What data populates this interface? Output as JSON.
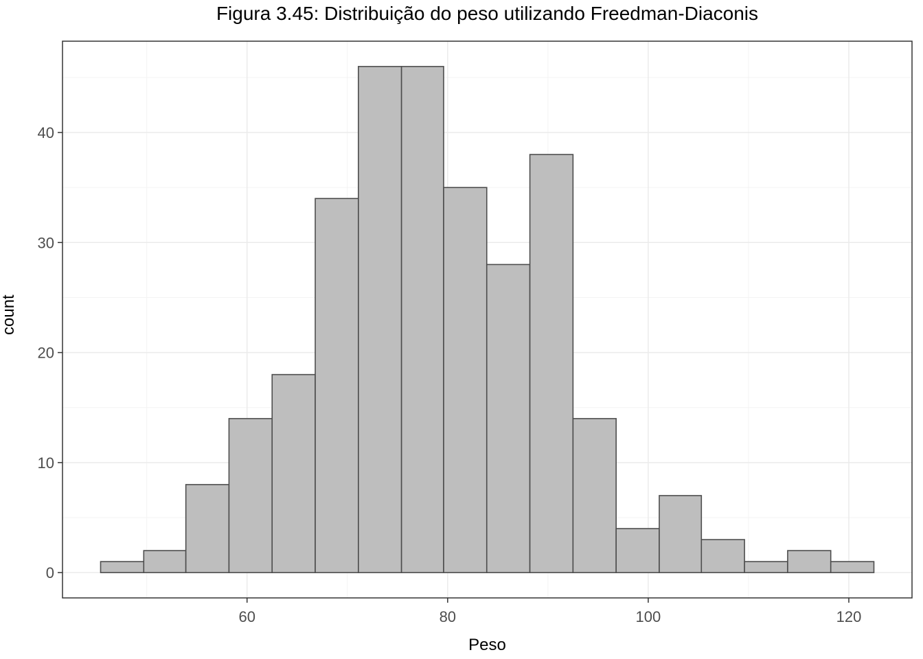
{
  "chart_data": {
    "type": "bar",
    "title": "Figura 3.45: Distribuição do peso utilizando Freedman-Diaconis",
    "xlabel": "Peso",
    "ylabel": "count",
    "bins": [
      {
        "x0": 45.4,
        "x1": 49.7,
        "count": 1
      },
      {
        "x0": 49.7,
        "x1": 53.9,
        "count": 2
      },
      {
        "x0": 53.9,
        "x1": 58.2,
        "count": 8
      },
      {
        "x0": 58.2,
        "x1": 62.5,
        "count": 14
      },
      {
        "x0": 62.5,
        "x1": 66.8,
        "count": 18
      },
      {
        "x0": 66.8,
        "x1": 71.1,
        "count": 34
      },
      {
        "x0": 71.1,
        "x1": 75.4,
        "count": 46
      },
      {
        "x0": 75.4,
        "x1": 79.6,
        "count": 46
      },
      {
        "x0": 79.6,
        "x1": 83.9,
        "count": 35
      },
      {
        "x0": 83.9,
        "x1": 88.2,
        "count": 28
      },
      {
        "x0": 88.2,
        "x1": 92.5,
        "count": 38
      },
      {
        "x0": 92.5,
        "x1": 96.8,
        "count": 14
      },
      {
        "x0": 96.8,
        "x1": 101.1,
        "count": 4
      },
      {
        "x0": 101.1,
        "x1": 105.3,
        "count": 7
      },
      {
        "x0": 105.3,
        "x1": 109.6,
        "count": 3
      },
      {
        "x0": 109.6,
        "x1": 113.9,
        "count": 1
      },
      {
        "x0": 113.9,
        "x1": 118.2,
        "count": 2
      },
      {
        "x0": 118.2,
        "x1": 122.5,
        "count": 1
      }
    ],
    "xlim": [
      41.6,
      126.3
    ],
    "ylim": [
      -2.3,
      48.3
    ],
    "x_ticks": [
      60,
      80,
      100,
      120
    ],
    "x_minor_ticks": [
      50,
      70,
      90,
      110
    ],
    "y_ticks": [
      0,
      10,
      20,
      30,
      40
    ],
    "y_minor_ticks": [
      5,
      15,
      25,
      35,
      45
    ],
    "grid": true,
    "colors": {
      "bar_fill": "#bebebe",
      "bar_stroke": "#4d4d4d",
      "grid_major": "#ebebeb",
      "grid_minor": "#f3f3f3",
      "panel_border": "#333333"
    }
  }
}
